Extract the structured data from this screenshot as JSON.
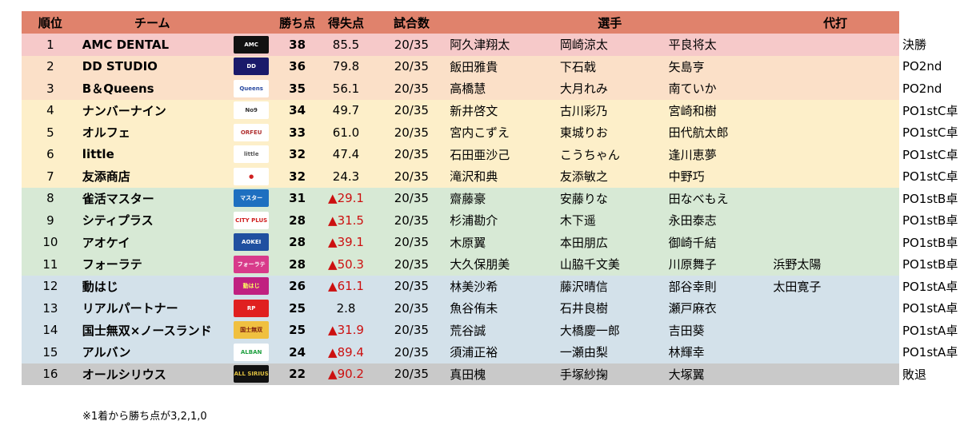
{
  "headers": {
    "rank": "順位",
    "team": "チーム",
    "points": "勝ち点",
    "diff": "得失点",
    "games": "試合数",
    "players": "選手",
    "sub": "代打"
  },
  "row_colors": {
    "pink": "#f6c9c9",
    "peach": "#fbe0c8",
    "cream": "#fdefc9",
    "green": "#d7e9d5",
    "blue": "#d3e1ea",
    "grey": "#c9c9c9",
    "header": "#e0826c"
  },
  "rows": [
    {
      "rank": "1",
      "team": "AMC DENTAL",
      "pts": "38",
      "diff": "85.5",
      "neg": false,
      "games": "20/35",
      "p1": "阿久津翔太",
      "p2": "岡崎涼太",
      "p3": "平良将太",
      "sub": "",
      "result": "決勝",
      "color": "pink",
      "logo": {
        "text": "AMC",
        "bg": "#111111",
        "fg": "#ffffff"
      }
    },
    {
      "rank": "2",
      "team": "DD STUDIO",
      "pts": "36",
      "diff": "79.8",
      "neg": false,
      "games": "20/35",
      "p1": "飯田雅貴",
      "p2": "下石戟",
      "p3": "矢島亨",
      "sub": "",
      "result": "PO2nd",
      "color": "peach",
      "logo": {
        "text": "DD",
        "bg": "#1a1a6a",
        "fg": "#ffffff"
      }
    },
    {
      "rank": "3",
      "team": "B＆Queens",
      "pts": "35",
      "diff": "56.1",
      "neg": false,
      "games": "20/35",
      "p1": "高橋慧",
      "p2": "大月れみ",
      "p3": "南ていか",
      "sub": "",
      "result": "PO2nd",
      "color": "peach",
      "logo": {
        "text": "Queens",
        "bg": "#ffffff",
        "fg": "#2a4aa0"
      }
    },
    {
      "rank": "4",
      "team": "ナンバーナイン",
      "pts": "34",
      "diff": "49.7",
      "neg": false,
      "games": "20/35",
      "p1": "新井啓文",
      "p2": "古川彩乃",
      "p3": "宮崎和樹",
      "sub": "",
      "result": "PO1stC卓",
      "color": "cream",
      "logo": {
        "text": "No9",
        "bg": "#ffffff",
        "fg": "#333333"
      }
    },
    {
      "rank": "5",
      "team": "オルフェ",
      "pts": "33",
      "diff": "61.0",
      "neg": false,
      "games": "20/35",
      "p1": "宮内こずえ",
      "p2": "東城りお",
      "p3": "田代航太郎",
      "sub": "",
      "result": "PO1stC卓",
      "color": "cream",
      "logo": {
        "text": "ORFEU",
        "bg": "#ffffff",
        "fg": "#b03030"
      }
    },
    {
      "rank": "6",
      "team": "little",
      "pts": "32",
      "diff": "47.4",
      "neg": false,
      "games": "20/35",
      "p1": "石田亜沙己",
      "p2": "こうちゃん",
      "p3": "逢川恵夢",
      "sub": "",
      "result": "PO1stC卓",
      "color": "cream",
      "logo": {
        "text": "little",
        "bg": "#ffffff",
        "fg": "#555555"
      }
    },
    {
      "rank": "7",
      "team": "友添商店",
      "pts": "32",
      "diff": "24.3",
      "neg": false,
      "games": "20/35",
      "p1": "滝沢和典",
      "p2": "友添敏之",
      "p3": "中野巧",
      "sub": "",
      "result": "PO1stC卓",
      "color": "cream",
      "logo": {
        "text": "●",
        "bg": "#ffffff",
        "fg": "#d02020"
      }
    },
    {
      "rank": "8",
      "team": "雀活マスター",
      "pts": "31",
      "diff": "▲29.1",
      "neg": true,
      "games": "20/35",
      "p1": "齋藤豪",
      "p2": "安藤りな",
      "p3": "田なべもえ",
      "sub": "",
      "result": "PO1stB卓",
      "color": "green",
      "logo": {
        "text": "マスター",
        "bg": "#1e6fc0",
        "fg": "#ffffff"
      }
    },
    {
      "rank": "9",
      "team": "シティプラス",
      "pts": "28",
      "diff": "▲31.5",
      "neg": true,
      "games": "20/35",
      "p1": "杉浦勘介",
      "p2": "木下遥",
      "p3": "永田泰志",
      "sub": "",
      "result": "PO1stB卓",
      "color": "green",
      "logo": {
        "text": "CITY PLUS",
        "bg": "#ffffff",
        "fg": "#d02020"
      }
    },
    {
      "rank": "10",
      "team": "アオケイ",
      "pts": "28",
      "diff": "▲39.1",
      "neg": true,
      "games": "20/35",
      "p1": "木原翼",
      "p2": "本田朋広",
      "p3": "御崎千結",
      "sub": "",
      "result": "PO1stB卓",
      "color": "green",
      "logo": {
        "text": "AOKEI",
        "bg": "#2050a0",
        "fg": "#ffffff"
      }
    },
    {
      "rank": "11",
      "team": "フォーラテ",
      "pts": "28",
      "diff": "▲50.3",
      "neg": true,
      "games": "20/35",
      "p1": "大久保朋美",
      "p2": "山脇千文美",
      "p3": "川原舞子",
      "sub": "浜野太陽",
      "result": "PO1stB卓",
      "color": "green",
      "logo": {
        "text": "フォーラテ",
        "bg": "#d83a8a",
        "fg": "#ffffff"
      }
    },
    {
      "rank": "12",
      "team": "動はじ",
      "pts": "26",
      "diff": "▲61.1",
      "neg": true,
      "games": "20/35",
      "p1": "林美沙希",
      "p2": "藤沢晴信",
      "p3": "部谷幸則",
      "sub": "太田寛子",
      "result": "PO1stA卓",
      "color": "blue",
      "logo": {
        "text": "動はじ",
        "bg": "#c02080",
        "fg": "#ffff60"
      }
    },
    {
      "rank": "13",
      "team": "リアルパートナー",
      "pts": "25",
      "diff": "2.8",
      "neg": false,
      "games": "20/35",
      "p1": "魚谷侑未",
      "p2": "石井良樹",
      "p3": "瀬戸麻衣",
      "sub": "",
      "result": "PO1stA卓",
      "color": "blue",
      "logo": {
        "text": "RP",
        "bg": "#e02020",
        "fg": "#ffffff"
      }
    },
    {
      "rank": "14",
      "team": "国士無双×ノースランド",
      "pts": "25",
      "diff": "▲31.9",
      "neg": true,
      "games": "20/35",
      "p1": "荒谷誠",
      "p2": "大橋慶一郎",
      "p3": "吉田葵",
      "sub": "",
      "result": "PO1stA卓",
      "color": "blue",
      "logo": {
        "text": "国士無双",
        "bg": "#f0c040",
        "fg": "#802010"
      }
    },
    {
      "rank": "15",
      "team": "アルバン",
      "pts": "24",
      "diff": "▲89.4",
      "neg": true,
      "games": "20/35",
      "p1": "須浦正裕",
      "p2": "一瀬由梨",
      "p3": "林輝幸",
      "sub": "",
      "result": "PO1stA卓",
      "color": "blue",
      "logo": {
        "text": "ALBAN",
        "bg": "#ffffff",
        "fg": "#20a040"
      }
    },
    {
      "rank": "16",
      "team": "オールシリウス",
      "pts": "22",
      "diff": "▲90.2",
      "neg": true,
      "games": "20/35",
      "p1": "真田槐",
      "p2": "手塚紗掬",
      "p3": "大塚翼",
      "sub": "",
      "result": "敗退",
      "color": "grey",
      "logo": {
        "text": "ALL SIRIUS",
        "bg": "#111111",
        "fg": "#e0c040"
      }
    }
  ],
  "note": "※1着から勝ち点が3,2,1,0"
}
